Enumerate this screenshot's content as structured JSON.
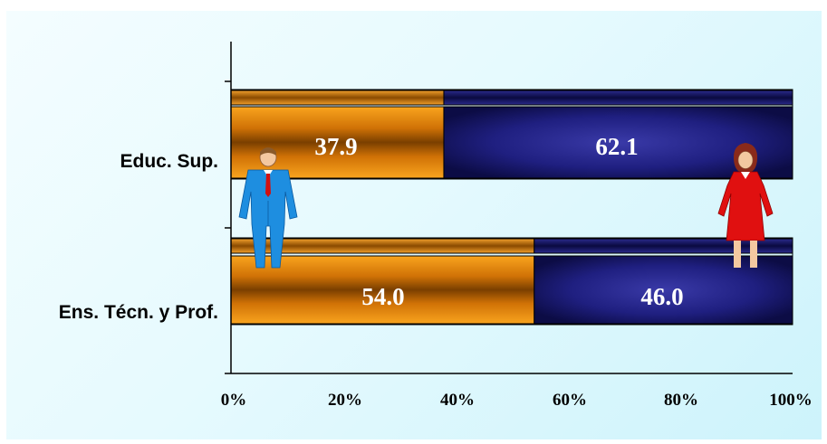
{
  "chart_data": {
    "type": "bar",
    "orientation": "horizontal",
    "stacked": true,
    "percent_stacked": true,
    "categories": [
      "Educ. Sup.",
      "Ens. Técn. y Prof."
    ],
    "series": [
      {
        "values": [
          37.9,
          54.0
        ],
        "value_labels": [
          "37.9",
          "54.0"
        ],
        "color": "#e8860a"
      },
      {
        "values": [
          62.1,
          46.0
        ],
        "value_labels": [
          "62.1",
          "46.0"
        ],
        "color": "#1a1a6e"
      }
    ],
    "x_ticks": [
      "0%",
      "20%",
      "40%",
      "60%",
      "80%",
      "100%"
    ],
    "xlim": [
      0,
      100
    ],
    "grid": false,
    "legend": "none",
    "decorations": [
      "man-figure-icon",
      "woman-figure-icon"
    ]
  }
}
